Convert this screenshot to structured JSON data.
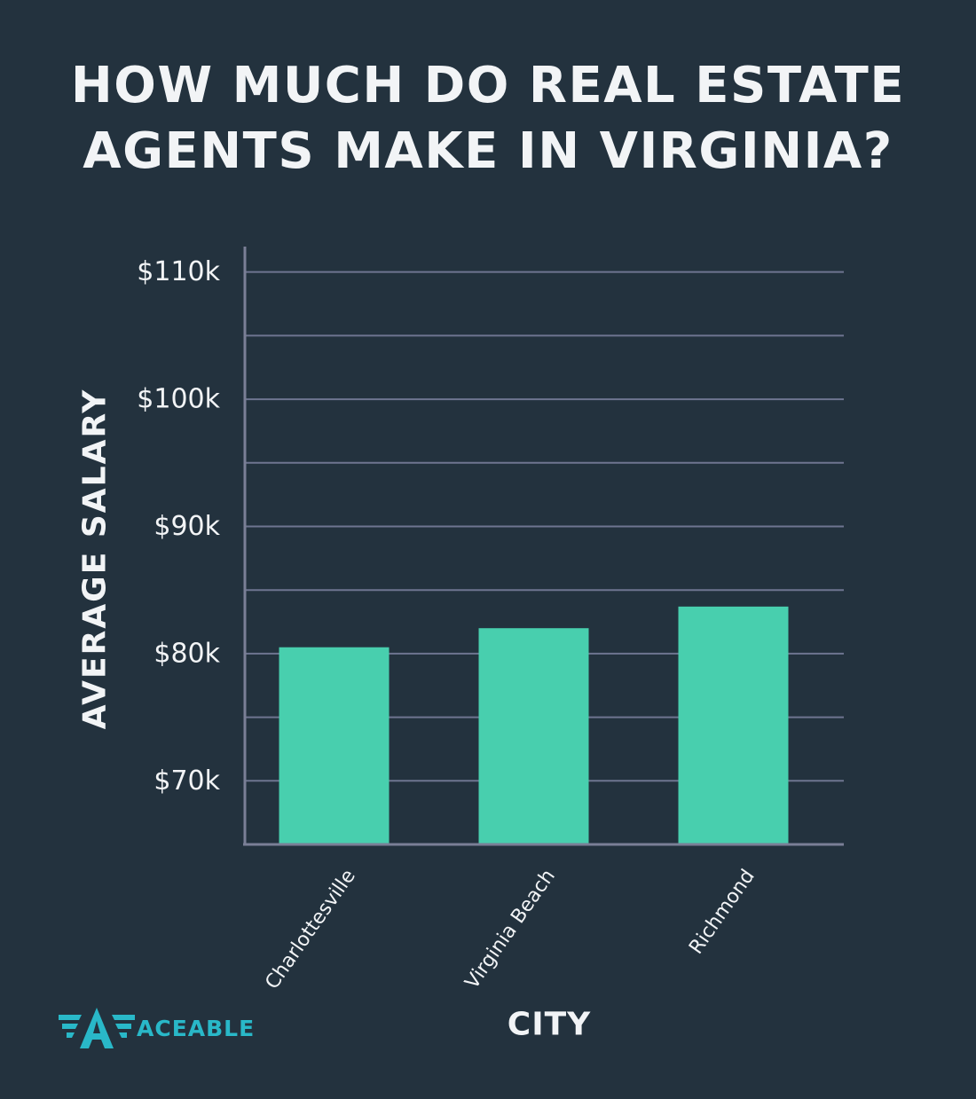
{
  "chart_data": {
    "type": "bar",
    "title": "HOW MUCH DO REAL ESTATE\nAGENTS MAKE IN VIRGINIA?",
    "xlabel": "CITY",
    "ylabel": "AVERAGE SALARY",
    "categories": [
      "Charlottesville",
      "Virginia Beach",
      "Richmond"
    ],
    "values": [
      80500,
      82000,
      83700
    ],
    "ylim": [
      65000,
      112000
    ],
    "yticks": [
      70000,
      80000,
      90000,
      100000,
      110000
    ],
    "ytick_labels": [
      "$70k",
      "$80k",
      "$90k",
      "$100k",
      "$110k"
    ],
    "grid": true,
    "bar_color": "#48cfae"
  },
  "logo": {
    "text": "ACEABLE",
    "color": "#29b8c8"
  }
}
